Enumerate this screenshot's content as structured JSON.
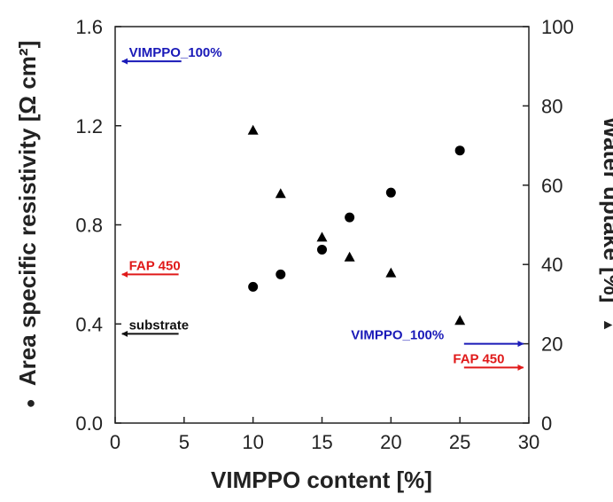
{
  "chart_data": {
    "type": "scatter",
    "xlabel": "VIMPPO content [%]",
    "ylabel_left": "Area specific resistivity [Ω cm²]",
    "ylabel_left_marker": "●",
    "ylabel_right": "Water uptake [%]",
    "ylabel_right_marker": "▲",
    "xlim": [
      0,
      30
    ],
    "ylim_left": [
      0.0,
      1.6
    ],
    "ylim_right": [
      0,
      100
    ],
    "x_ticks": [
      "0",
      "5",
      "10",
      "15",
      "20",
      "25",
      "30"
    ],
    "y_left_ticks": [
      "0.0",
      "0.4",
      "0.8",
      "1.2",
      "1.6"
    ],
    "y_right_ticks": [
      "0",
      "20",
      "40",
      "60",
      "80",
      "100"
    ],
    "grid": false,
    "series": [
      {
        "marker": "circle",
        "axis": "left",
        "x": [
          10,
          12,
          15,
          17,
          20,
          25
        ],
        "y": [
          0.55,
          0.6,
          0.7,
          0.83,
          0.93,
          1.1
        ]
      },
      {
        "marker": "triangle",
        "axis": "right",
        "x": [
          10,
          12,
          15,
          17,
          20,
          25
        ],
        "y": [
          74,
          58,
          47,
          42,
          38,
          26
        ]
      }
    ],
    "annotations": [
      {
        "text": "VIMPPO_100%",
        "axis": "left",
        "value": 1.46,
        "x_from": 4.8,
        "x_to": 0.5,
        "color": "#1a1ab8",
        "label_x": 1.0
      },
      {
        "text": "FAP 450",
        "axis": "left",
        "value": 0.6,
        "x_from": 4.6,
        "x_to": 0.5,
        "color": "#e01a1a",
        "label_x": 1.0
      },
      {
        "text": "substrate",
        "axis": "left",
        "value": 0.36,
        "x_from": 4.6,
        "x_to": 0.5,
        "color": "#111111",
        "label_x": 1.0
      },
      {
        "text": "VIMPPO_100%",
        "axis": "right",
        "value": 20,
        "x_from": 25.3,
        "x_to": 29.6,
        "color": "#1a1ab8",
        "label_x": 17.1
      },
      {
        "text": "FAP 450",
        "axis": "right",
        "value": 14,
        "x_from": 25.3,
        "x_to": 29.6,
        "color": "#e01a1a",
        "label_x": 24.5
      }
    ]
  }
}
